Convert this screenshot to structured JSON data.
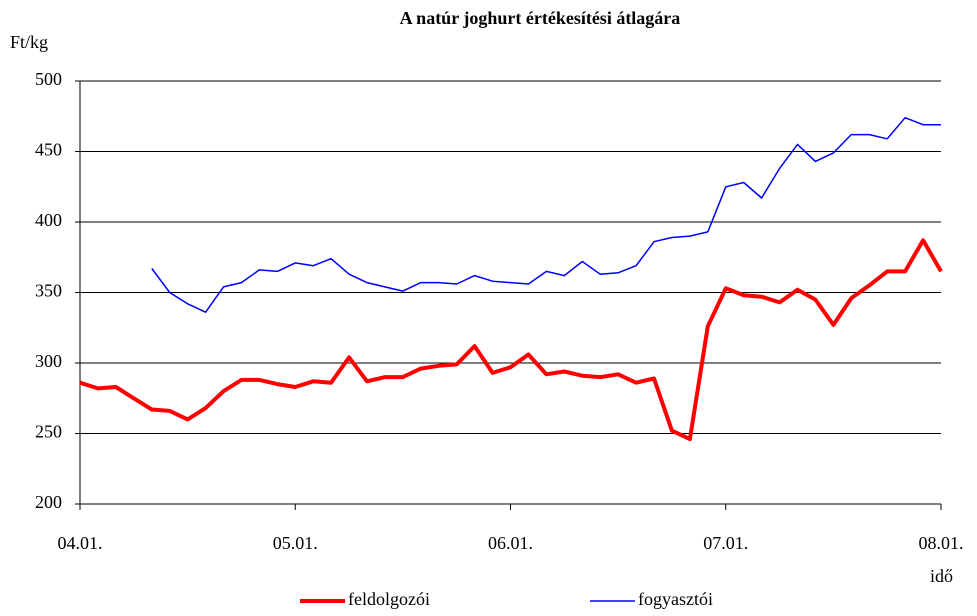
{
  "chart_data": {
    "type": "line",
    "title": "A natúr joghurt értékesítési átlagára",
    "y_label": "Ft/kg",
    "x_label": "idő",
    "categories": [
      "04.01.",
      null,
      null,
      null,
      null,
      null,
      null,
      null,
      null,
      null,
      null,
      null,
      "05.01.",
      null,
      null,
      null,
      null,
      null,
      null,
      null,
      null,
      null,
      null,
      null,
      "06.01.",
      null,
      null,
      null,
      null,
      null,
      null,
      null,
      null,
      null,
      null,
      null,
      "07.01.",
      null,
      null,
      null,
      null,
      null,
      null,
      null,
      null,
      null,
      null,
      null,
      "08.01."
    ],
    "series": [
      {
        "name": "feldolgozói",
        "color": "#ff0000",
        "width": 4,
        "values": [
          286,
          282,
          283,
          275,
          267,
          266,
          260,
          268,
          280,
          288,
          288,
          285,
          283,
          287,
          286,
          304,
          287,
          290,
          290,
          296,
          298,
          299,
          312,
          293,
          297,
          306,
          292,
          294,
          291,
          290,
          292,
          286,
          289,
          252,
          246,
          326,
          353,
          348,
          347,
          343,
          352,
          345,
          327,
          346,
          355,
          365,
          365,
          387,
          365
        ]
      },
      {
        "name": "fogyasztói",
        "color": "#0000ff",
        "width": 1.5,
        "values": [
          null,
          null,
          null,
          null,
          367,
          350,
          342,
          336,
          354,
          357,
          366,
          365,
          371,
          369,
          374,
          363,
          357,
          354,
          351,
          357,
          357,
          356,
          362,
          358,
          357,
          356,
          365,
          362,
          372,
          363,
          364,
          369,
          386,
          389,
          390,
          393,
          425,
          428,
          417,
          438,
          455,
          443,
          449,
          462,
          462,
          459,
          474,
          469,
          469
        ]
      }
    ],
    "ylim": [
      200,
      500
    ],
    "yticks": [
      200,
      250,
      300,
      350,
      400,
      450,
      500
    ],
    "grid": true,
    "legend": "bottom"
  }
}
